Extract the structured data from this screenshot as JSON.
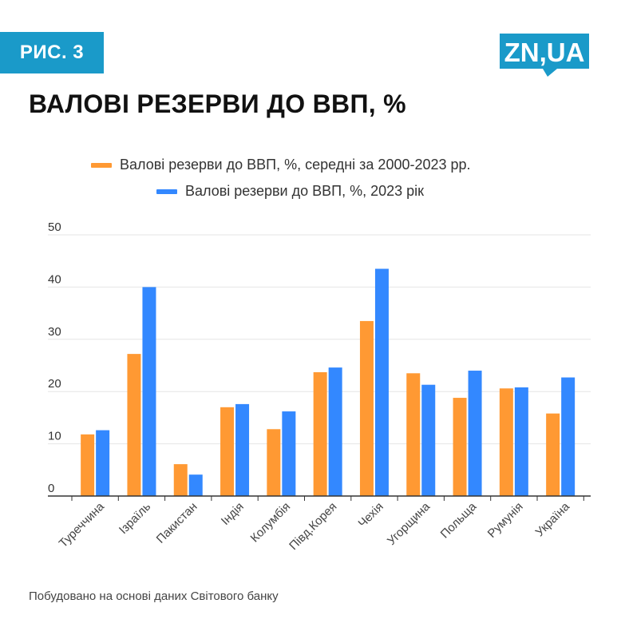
{
  "figure_label": "РИС. 3",
  "logo_text": "ZN,UA",
  "source_note": "Побудовано на основі даних Світового банку",
  "colors": {
    "badge": "#1a9ac9",
    "orange": "#ff9933",
    "blue": "#3388ff"
  },
  "chart_data": {
    "type": "bar",
    "title": "ВАЛОВІ РЕЗЕРВИ ДО ВВП, %",
    "xlabel": "",
    "ylabel": "",
    "ylim": [
      0,
      50
    ],
    "yticks": [
      0,
      10,
      20,
      30,
      40,
      50
    ],
    "grid": true,
    "legend_placement": "top",
    "categories": [
      "Туреччина",
      "Ізраїль",
      "Пакистан",
      "Індія",
      "Колумбія",
      "Півд.Корея",
      "Чехія",
      "Угорщина",
      "Польща",
      "Румунія",
      "Україна"
    ],
    "series": [
      {
        "name": "Валові резерви до ВВП, %, середні за 2000-2023 рр.",
        "color": "#ff9933",
        "values": [
          11.8,
          27.2,
          6.1,
          17.0,
          12.8,
          23.7,
          33.5,
          23.5,
          18.8,
          20.6,
          15.8
        ]
      },
      {
        "name": "Валові резерви до ВВП, %, 2023 рік",
        "color": "#3388ff",
        "values": [
          12.6,
          40.0,
          4.1,
          17.6,
          16.2,
          24.6,
          43.5,
          21.3,
          24.0,
          20.8,
          22.7
        ]
      }
    ]
  }
}
